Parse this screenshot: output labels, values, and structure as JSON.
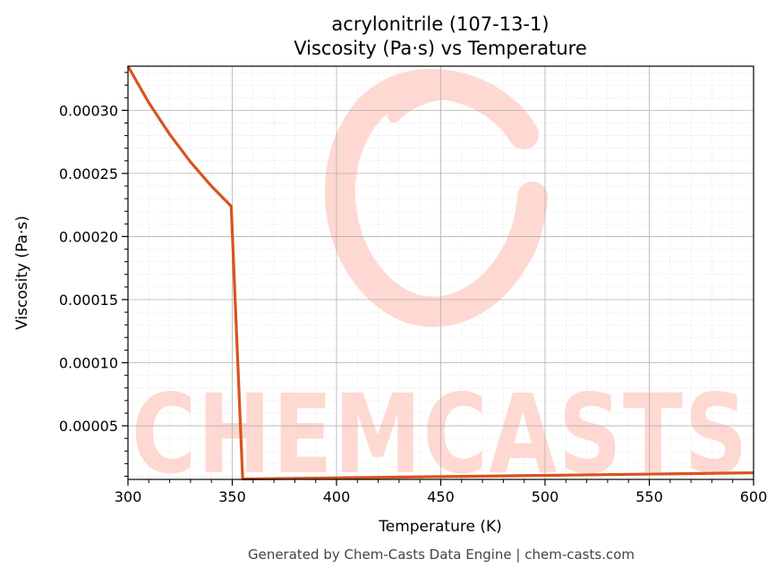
{
  "chart_data": {
    "type": "line",
    "title": "acrylonitrile (107-13-1)",
    "subtitle": "Viscosity (Pa·s) vs Temperature",
    "xlabel": "Temperature (K)",
    "ylabel": "Viscosity (Pa·s)",
    "xlim": [
      300,
      600
    ],
    "ylim": [
      7.5e-06,
      0.000335
    ],
    "x_ticks": [
      300,
      350,
      400,
      450,
      500,
      550,
      600
    ],
    "x_tick_labels": [
      "300",
      "350",
      "400",
      "450",
      "500",
      "550",
      "600"
    ],
    "y_ticks": [
      5e-05,
      0.0001,
      0.00015,
      0.0002,
      0.00025,
      0.0003
    ],
    "y_tick_labels": [
      "0.00005",
      "0.00010",
      "0.00015",
      "0.00020",
      "0.00025",
      "0.00030"
    ],
    "grid": true,
    "line_color": "#d9531e",
    "series": [
      {
        "x": [
          300,
          310,
          320,
          330,
          340,
          349.5,
          355,
          360,
          400,
          450,
          500,
          550,
          600
        ],
        "y": [
          0.000335,
          0.000306,
          0.000281,
          0.000259,
          0.00024,
          0.000224,
          7.8e-06,
          7.9e-06,
          8.7e-06,
          9.7e-06,
          1.07e-05,
          1.17e-05,
          1.27e-05
        ]
      }
    ]
  },
  "watermark": {
    "text": "CHEMCASTS",
    "color": "#ffd8d2"
  },
  "footer": "Generated by Chem-Casts Data Engine | chem-casts.com"
}
